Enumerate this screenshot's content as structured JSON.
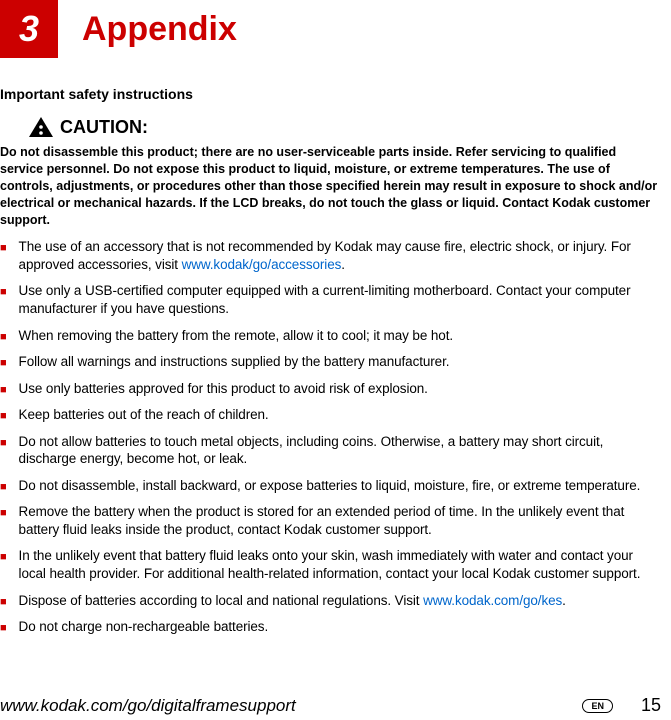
{
  "chapter": {
    "number": "3",
    "title": "Appendix"
  },
  "safety_heading": "Important safety instructions",
  "caution": {
    "label": "CAUTION:",
    "text": "Do not disassemble this product; there are no user-serviceable parts inside. Refer servicing to qualified service personnel. Do not expose this product to liquid, moisture, or extreme temperatures. The use of controls, adjustments, or procedures other than those specified herein may result in exposure to shock and/or electrical or mechanical hazards. If the LCD breaks, do not touch the glass or liquid. Contact Kodak customer support."
  },
  "bullets": [
    {
      "pre": "The use of an accessory that is not recommended by Kodak may cause fire, electric shock, or injury. For approved accessories, visit ",
      "link": "www.kodak/go/accessories",
      "post": "."
    },
    {
      "pre": "Use only a USB-certified computer equipped with a current-limiting motherboard. Contact your computer manufacturer if you have questions.",
      "link": "",
      "post": ""
    },
    {
      "pre": "When removing the battery from the remote, allow it to cool; it may be hot.",
      "link": "",
      "post": ""
    },
    {
      "pre": "Follow all warnings and instructions supplied by the battery manufacturer.",
      "link": "",
      "post": ""
    },
    {
      "pre": "Use only batteries approved for this product to avoid risk of explosion.",
      "link": "",
      "post": ""
    },
    {
      "pre": "Keep batteries out of the reach of children.",
      "link": "",
      "post": ""
    },
    {
      "pre": "Do not allow batteries to touch metal objects, including coins. Otherwise, a battery may short circuit, discharge energy, become hot, or leak.",
      "link": "",
      "post": ""
    },
    {
      "pre": "Do not disassemble, install backward, or expose batteries to liquid, moisture, fire, or extreme temperature.",
      "link": "",
      "post": ""
    },
    {
      "pre": "Remove the battery when the product is stored for an extended period of time. In the unlikely event that battery fluid leaks inside the product, contact Kodak customer support.",
      "link": "",
      "post": ""
    },
    {
      "pre": "In the unlikely event that battery fluid leaks onto your skin, wash immediately with water and contact your local health provider. For additional health-related information, contact your local Kodak customer support.",
      "link": "",
      "post": ""
    },
    {
      "pre": "Dispose of batteries according to local and national regulations. Visit ",
      "link": "www.kodak.com/go/kes",
      "post": "."
    },
    {
      "pre": "Do not charge non-rechargeable batteries.",
      "link": "",
      "post": ""
    }
  ],
  "footer": {
    "url": "www.kodak.com/go/digitalframesupport",
    "lang": "EN",
    "page": "15"
  },
  "colors": {
    "accent": "#cc0000",
    "link": "#0066cc"
  }
}
